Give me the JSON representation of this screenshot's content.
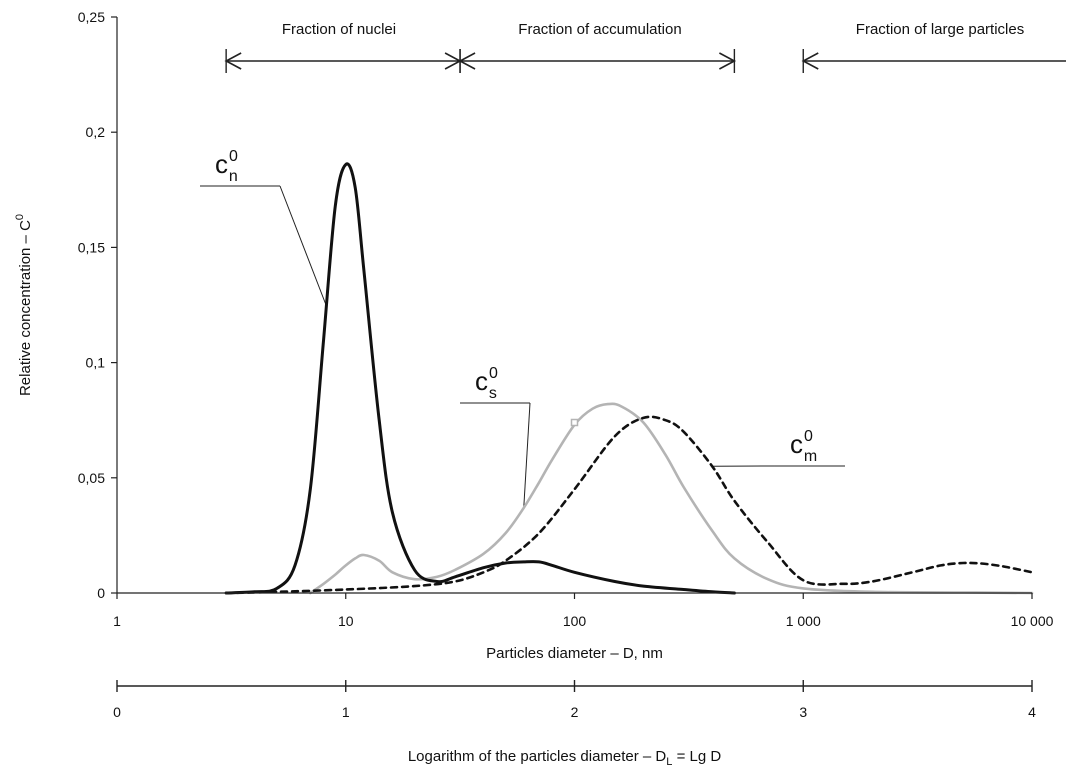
{
  "chart_data": {
    "type": "line",
    "xlabel": "Particles diameter – D, nm",
    "ylabel": "Relative concentration – C",
    "ylabel_sup": "0",
    "x_scale": "log",
    "xlim": [
      1,
      10000
    ],
    "ylim": [
      0,
      0.25
    ],
    "y_ticks": [
      0,
      0.05,
      0.1,
      0.15,
      0.2,
      0.25
    ],
    "y_tick_labels": [
      "0",
      "0,05",
      "0,1",
      "0,15",
      "0,2",
      "0,25"
    ],
    "x_ticks": [
      1,
      10,
      100,
      1000,
      10000
    ],
    "x_tick_labels": [
      "1",
      "10",
      "100",
      "1 000",
      "10 000"
    ],
    "secondary_axis": {
      "label": "Logarithm of the particles diameter – D",
      "label_sub": "L",
      "label_tail": " = Lg D",
      "ticks": [
        0,
        1,
        2,
        3,
        4
      ],
      "tick_labels": [
        "0",
        "1",
        "2",
        "3",
        "4"
      ]
    },
    "fractions": [
      {
        "label": "Fraction of nuclei",
        "from": 3,
        "to": 31.6
      },
      {
        "label": "Fraction of accumulation",
        "from": 31.6,
        "to": 500
      },
      {
        "label": "Fraction of large particles",
        "from": 1000,
        "to": 10000
      }
    ],
    "series": [
      {
        "label": "c",
        "label_sup": "0",
        "label_sub": "n",
        "style": "solid",
        "color": "#111111",
        "x": [
          3,
          4,
          5,
          6,
          7,
          8,
          9,
          10,
          11,
          12,
          14,
          16,
          20,
          25,
          30,
          40,
          50,
          60,
          70,
          80,
          100,
          150,
          200,
          300,
          400,
          500
        ],
        "y": [
          0,
          0.0005,
          0.002,
          0.012,
          0.045,
          0.11,
          0.168,
          0.186,
          0.176,
          0.14,
          0.075,
          0.035,
          0.01,
          0.005,
          0.007,
          0.011,
          0.013,
          0.0135,
          0.0135,
          0.012,
          0.009,
          0.005,
          0.003,
          0.0015,
          0.0005,
          0
        ]
      },
      {
        "label": "c",
        "label_sup": "0",
        "label_sub": "s",
        "style": "solid",
        "color": "#b4b4b4",
        "x": [
          7,
          8,
          9,
          10,
          11,
          12,
          14,
          16,
          20,
          25,
          30,
          40,
          50,
          60,
          70,
          80,
          100,
          120,
          140,
          160,
          200,
          250,
          300,
          400,
          500,
          700,
          1000,
          2000,
          5000,
          10000
        ],
        "y": [
          0,
          0.004,
          0.008,
          0.012,
          0.015,
          0.0165,
          0.014,
          0.009,
          0.006,
          0.007,
          0.01,
          0.017,
          0.026,
          0.037,
          0.048,
          0.058,
          0.073,
          0.08,
          0.082,
          0.081,
          0.074,
          0.06,
          0.046,
          0.027,
          0.015,
          0.006,
          0.002,
          0.0005,
          0.0002,
          0
        ]
      },
      {
        "label": "c",
        "label_sup": "0",
        "label_sub": "m",
        "style": "dashed",
        "color": "#111111",
        "x": [
          3,
          5,
          10,
          20,
          30,
          40,
          50,
          70,
          100,
          150,
          200,
          250,
          300,
          400,
          500,
          700,
          1000,
          1500,
          2000,
          3000,
          4000,
          5000,
          6000,
          7000,
          8000,
          10000
        ],
        "y": [
          0,
          0.0005,
          0.0015,
          0.003,
          0.005,
          0.009,
          0.014,
          0.026,
          0.045,
          0.068,
          0.076,
          0.075,
          0.07,
          0.055,
          0.04,
          0.022,
          0.0055,
          0.004,
          0.005,
          0.009,
          0.012,
          0.013,
          0.0128,
          0.012,
          0.011,
          0.009
        ]
      }
    ]
  }
}
